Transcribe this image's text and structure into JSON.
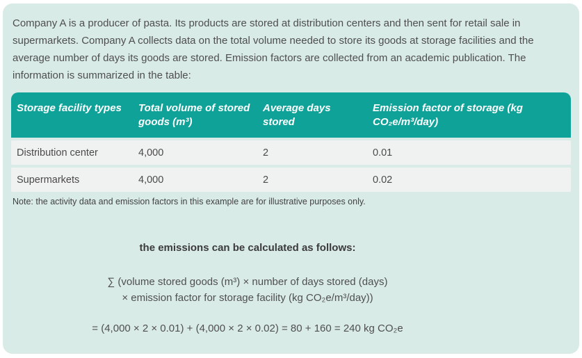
{
  "panel": {
    "background": "#d9ebe7",
    "accent_teal": "#0fa298",
    "row_gray": "#f0f2f1"
  },
  "intro": {
    "lines": [
      "Company A is a producer of pasta. Its products are stored at distribution centers and then sent for retail sale in",
      "supermarkets. Company A collects data on the total volume needed to store its goods at storage facilities and the",
      "average number of days its goods are stored. Emission factors are collected from an academic publication. The",
      "information is summarized in the table:"
    ]
  },
  "table": {
    "columns": [
      "Storage facility types",
      "Total volume of stored goods (m³)",
      "Average days stored",
      "Emission factor of storage (kg CO₂e/m³/day)"
    ],
    "rows": [
      [
        "Distribution center",
        "4,000",
        "2",
        "0.01"
      ],
      [
        "Supermarkets",
        "4,000",
        "2",
        "0.02"
      ]
    ]
  },
  "note": "Note: the activity data and emission factors in this example are for illustrative purposes only.",
  "calculation": {
    "heading": "the emissions can be calculated as follows:",
    "formula_line1": "∑ (volume stored goods (m³) × number of days stored (days)",
    "formula_line2": "× emission factor for storage facility (kg CO₂e/m³/day))",
    "result": "= (4,000 × 2 × 0.01) + (4,000 × 2 × 0.02) = 80 + 160 = 240 kg CO₂e"
  }
}
